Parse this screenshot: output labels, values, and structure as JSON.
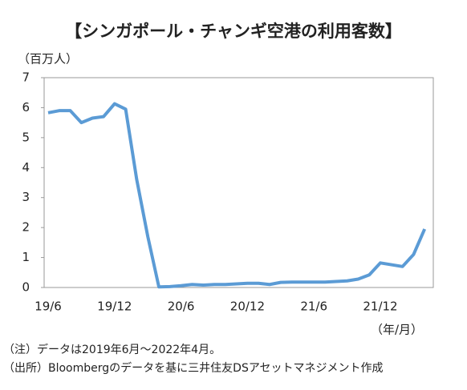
{
  "chart_data": {
    "type": "line",
    "title": "【シンガポール・チャンギ空港の利用客数】",
    "y_label": "（百万人）",
    "x_label": "（年/月）",
    "notes": [
      "（注）データは2019年6月～2022年4月。",
      "（出所）Bloombergのデータを基に三井住友DSアセットマネジメント作成"
    ],
    "categories": [
      "19/6",
      null,
      null,
      null,
      null,
      null,
      "19/12",
      null,
      null,
      null,
      null,
      null,
      "20/6",
      null,
      null,
      null,
      null,
      null,
      "20/12",
      null,
      null,
      null,
      null,
      null,
      "21/6",
      null,
      null,
      null,
      null,
      null,
      "21/12",
      null,
      null,
      null,
      null
    ],
    "series": [
      {
        "name": "利用客数",
        "color": "#5b9bd5",
        "values": [
          5.83,
          5.9,
          5.9,
          5.5,
          5.65,
          5.7,
          6.13,
          5.95,
          3.6,
          1.7,
          0.02,
          0.03,
          0.06,
          0.1,
          0.08,
          0.1,
          0.1,
          0.12,
          0.14,
          0.14,
          0.1,
          0.17,
          0.18,
          0.18,
          0.18,
          0.18,
          0.2,
          0.22,
          0.28,
          0.42,
          0.82,
          0.76,
          0.7,
          1.1,
          1.95
        ]
      }
    ],
    "ylim": [
      0,
      7
    ],
    "yticks": [
      0,
      1,
      2,
      3,
      4,
      5,
      6,
      7
    ],
    "grid": false
  }
}
